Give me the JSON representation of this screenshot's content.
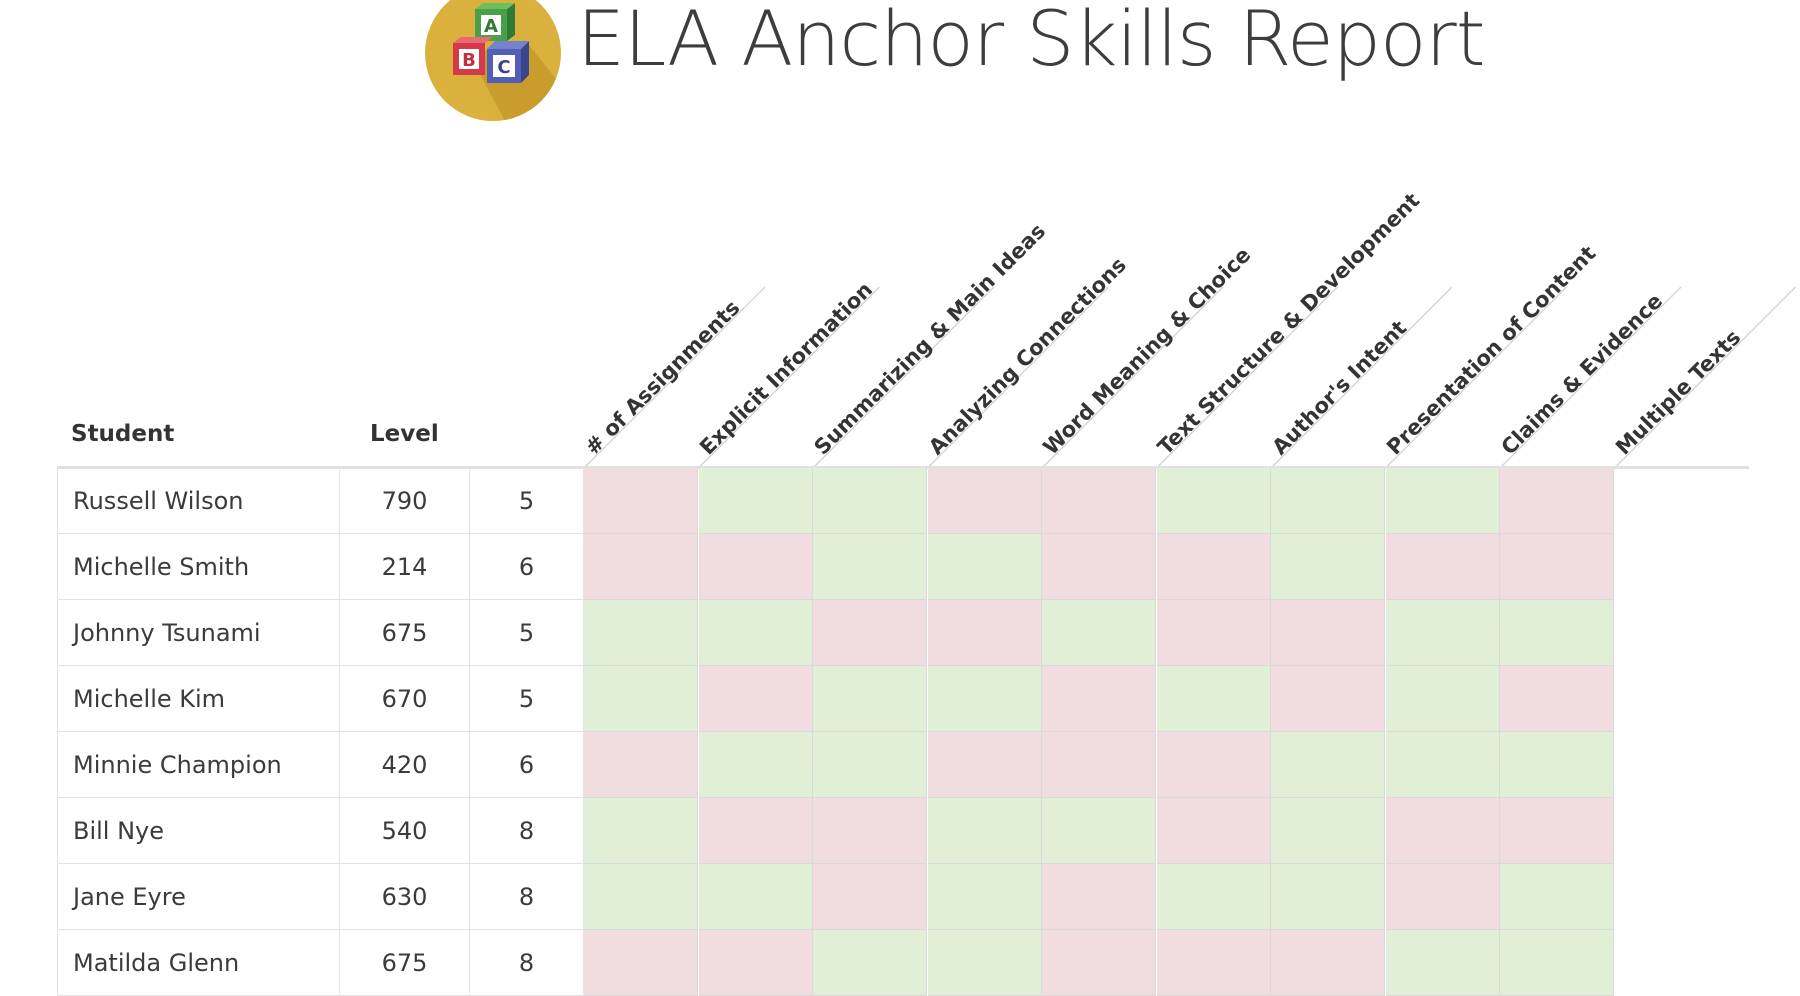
{
  "header": {
    "title": "ELA Anchor Skills Report",
    "logo_icon": "abc-blocks-icon",
    "logo_letters": [
      "A",
      "B",
      "C"
    ]
  },
  "table": {
    "student_header": "Student",
    "level_header": "Level",
    "skill_headers": [
      "# of Assignments",
      "Explicit Information",
      "Summarizing & Main Ideas",
      "Analyzing Connections",
      "Word Meaning & Choice",
      "Text Structure & Development",
      "Author's Intent",
      "Presentation of Content",
      "Claims & Evidence",
      "Multiple Texts"
    ],
    "status_colors": {
      "good": "#e0efd5",
      "bad": "#f1dcdf"
    },
    "rows": [
      {
        "student": "Russell Wilson",
        "level": "790",
        "grade": "5",
        "skills": [
          "bad",
          "good",
          "good",
          "bad",
          "bad",
          "good",
          "good",
          "good",
          "bad"
        ]
      },
      {
        "student": "Michelle Smith",
        "level": "214",
        "grade": "6",
        "skills": [
          "bad",
          "bad",
          "good",
          "good",
          "bad",
          "bad",
          "good",
          "bad",
          "bad"
        ]
      },
      {
        "student": "Johnny Tsunami",
        "level": "675",
        "grade": "5",
        "skills": [
          "good",
          "good",
          "bad",
          "bad",
          "good",
          "bad",
          "bad",
          "good",
          "good"
        ]
      },
      {
        "student": "Michelle Kim",
        "level": "670",
        "grade": "5",
        "skills": [
          "good",
          "bad",
          "good",
          "good",
          "bad",
          "good",
          "bad",
          "good",
          "bad"
        ]
      },
      {
        "student": "Minnie Champion",
        "level": "420",
        "grade": "6",
        "skills": [
          "bad",
          "good",
          "good",
          "bad",
          "bad",
          "bad",
          "good",
          "good",
          "good"
        ]
      },
      {
        "student": "Bill Nye",
        "level": "540",
        "grade": "8",
        "skills": [
          "good",
          "bad",
          "bad",
          "good",
          "good",
          "bad",
          "good",
          "bad",
          "bad"
        ]
      },
      {
        "student": "Jane Eyre",
        "level": "630",
        "grade": "8",
        "skills": [
          "good",
          "good",
          "bad",
          "good",
          "bad",
          "good",
          "good",
          "bad",
          "good"
        ]
      },
      {
        "student": "Matilda Glenn",
        "level": "675",
        "grade": "8",
        "skills": [
          "bad",
          "bad",
          "good",
          "good",
          "bad",
          "bad",
          "bad",
          "good",
          "good"
        ]
      }
    ]
  }
}
